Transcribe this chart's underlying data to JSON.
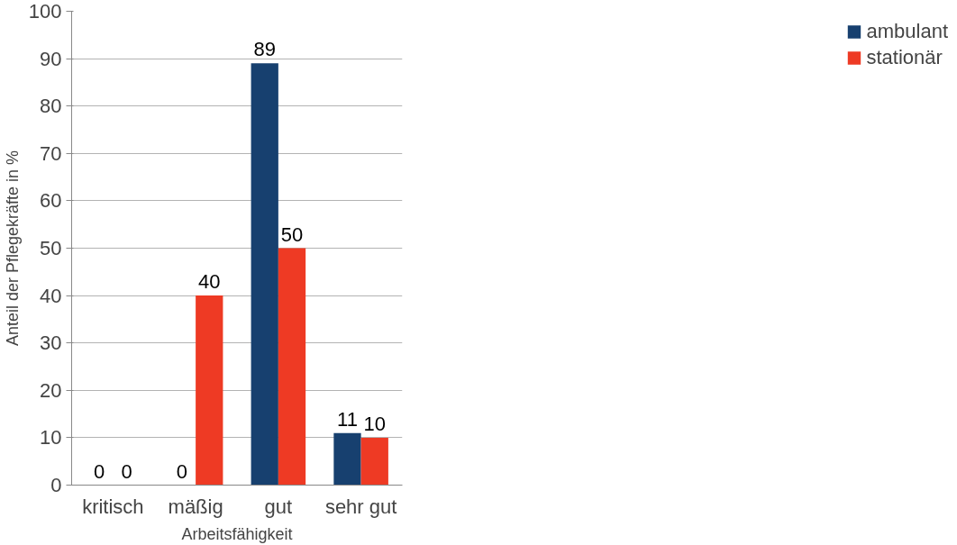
{
  "chart_data": {
    "type": "bar",
    "xlabel": "Arbeitsfähigkeit",
    "ylabel": "Anteil der Pflegekräfte in %",
    "categories": [
      "kritisch",
      "mäßig",
      "gut",
      "sehr gut"
    ],
    "series": [
      {
        "name": "ambulant",
        "color": "#17406f",
        "values": [
          0,
          0,
          89,
          11
        ]
      },
      {
        "name": "stationär",
        "color": "#ee3a24",
        "values": [
          0,
          40,
          50,
          10
        ]
      }
    ],
    "ylim": [
      0,
      100
    ],
    "yticks": [
      0,
      10,
      20,
      30,
      40,
      50,
      60,
      70,
      80,
      90,
      100
    ],
    "grid": "y",
    "legend": "right",
    "data_labels": true
  }
}
